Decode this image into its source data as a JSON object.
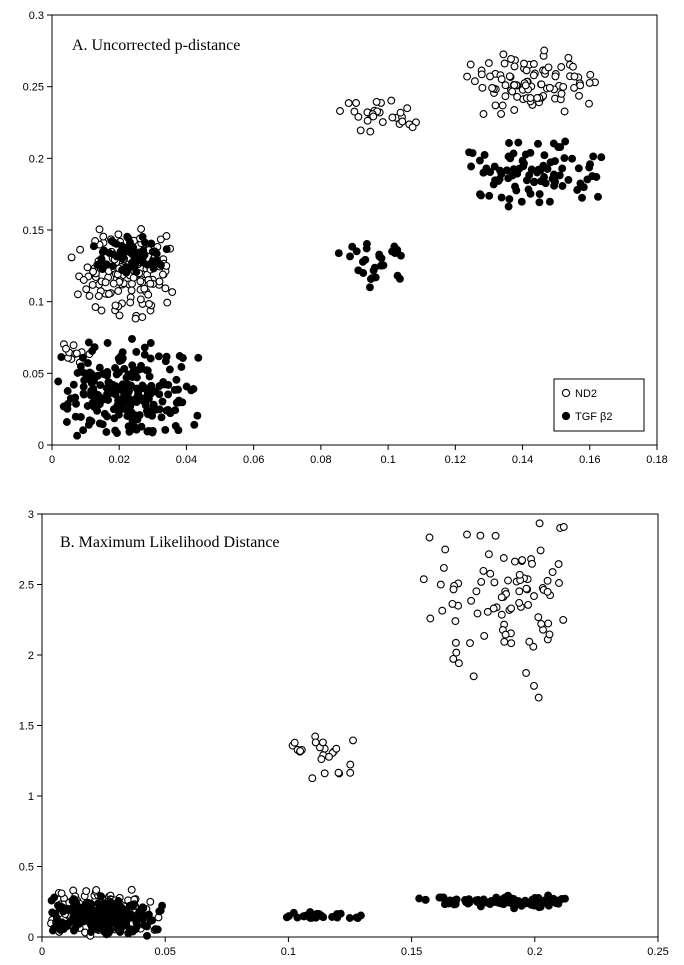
{
  "chart_data": [
    {
      "type": "scatter",
      "title": "A. Uncorrected p-distance",
      "xlabel": "",
      "ylabel": "",
      "xlim": [
        0,
        0.18
      ],
      "ylim": [
        0,
        0.3
      ],
      "x_ticks": [
        "0",
        "0.02",
        "0.04",
        "0.06",
        "0.08",
        "0.1",
        "0.12",
        "0.14",
        "0.16",
        "0.18"
      ],
      "y_ticks": [
        "0",
        "0.05",
        "0.1",
        "0.15",
        "0.2",
        "0.25",
        "0.3"
      ],
      "grid": false,
      "legend_position": "bottom-right",
      "series": [
        {
          "name": "ND2",
          "marker": "open-circle",
          "clusters": [
            {
              "n": 140,
              "x_range": [
                0.005,
                0.04
              ],
              "y_range": [
                0.085,
                0.157
              ]
            },
            {
              "n": 12,
              "x_range": [
                0.0,
                0.012
              ],
              "y_range": [
                0.055,
                0.072
              ]
            },
            {
              "n": 30,
              "x_range": [
                0.084,
                0.109
              ],
              "y_range": [
                0.216,
                0.246
              ]
            },
            {
              "n": 95,
              "x_range": [
                0.122,
                0.165
              ],
              "y_range": [
                0.228,
                0.277
              ]
            }
          ]
        },
        {
          "name": "TGF β2",
          "marker": "filled-circle",
          "clusters": [
            {
              "n": 65,
              "x_range": [
                0.012,
                0.035
              ],
              "y_range": [
                0.118,
                0.148
              ]
            },
            {
              "n": 230,
              "x_range": [
                0.0,
                0.045
              ],
              "y_range": [
                0.0,
                0.075
              ]
            },
            {
              "n": 30,
              "x_range": [
                0.085,
                0.11
              ],
              "y_range": [
                0.107,
                0.147
              ]
            },
            {
              "n": 95,
              "x_range": [
                0.122,
                0.165
              ],
              "y_range": [
                0.165,
                0.216
              ]
            }
          ]
        }
      ]
    },
    {
      "type": "scatter",
      "title": "B.  Maximum Likelihood Distance",
      "xlabel": "",
      "ylabel": "",
      "xlim": [
        0,
        0.25
      ],
      "ylim": [
        0,
        3
      ],
      "x_ticks": [
        "0",
        "0.05",
        "0.1",
        "0.15",
        "0.2",
        "0.25"
      ],
      "y_ticks": [
        "0",
        "0.5",
        "1",
        "1.5",
        "2",
        "2.5",
        "3"
      ],
      "grid": false,
      "series": [
        {
          "name": "ND2",
          "marker": "open-circle",
          "clusters": [
            {
              "n": 170,
              "x_range": [
                0.0,
                0.05
              ],
              "y_range": [
                0.0,
                0.36
              ]
            },
            {
              "n": 24,
              "x_range": [
                0.095,
                0.13
              ],
              "y_range": [
                1.08,
                1.46
              ]
            },
            {
              "n": 90,
              "x_range": [
                0.152,
                0.222
              ],
              "y_range": [
                1.63,
                2.97
              ]
            }
          ]
        },
        {
          "name": "TGF β2",
          "marker": "filled-circle",
          "clusters": [
            {
              "n": 220,
              "x_range": [
                0.0,
                0.05
              ],
              "y_range": [
                0.0,
                0.3
              ]
            },
            {
              "n": 30,
              "x_range": [
                0.095,
                0.132
              ],
              "y_range": [
                0.12,
                0.18
              ]
            },
            {
              "n": 95,
              "x_range": [
                0.152,
                0.222
              ],
              "y_range": [
                0.2,
                0.3
              ]
            }
          ]
        }
      ]
    }
  ],
  "legend": {
    "items": [
      {
        "label": "ND2",
        "marker": "open-circle"
      },
      {
        "label": "TGF β2",
        "marker": "filled-circle"
      }
    ]
  }
}
